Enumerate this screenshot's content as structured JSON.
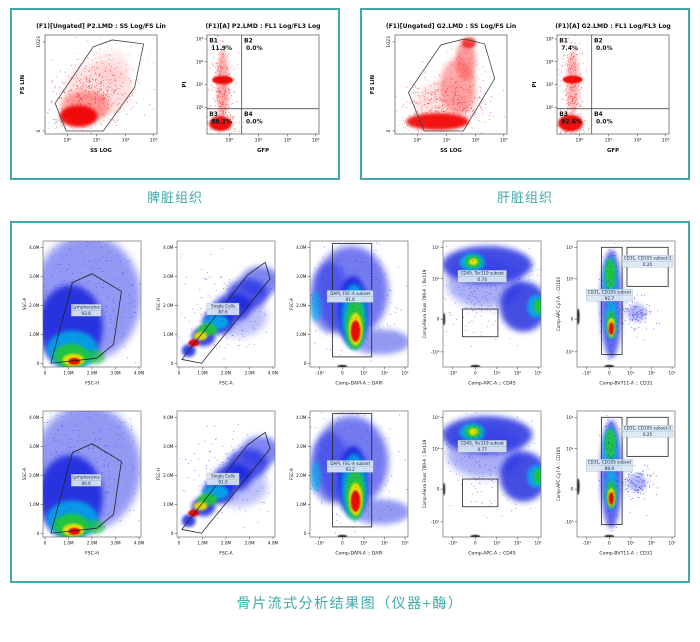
{
  "accent": "#3fa9ac",
  "top_panels": [
    {
      "tissue_label": "脾脏组织",
      "scatter": {
        "type": "fs",
        "kind": "fs_spleen",
        "title": "(F1)[Ungated] P2.LMD : SS Log/FS Lin",
        "xlabel": "SS LOG",
        "ylabel": "FS LIN",
        "xticks": [
          "10⁰",
          "10¹",
          "10²",
          "10³"
        ],
        "yticks": [
          "1023",
          "0"
        ]
      },
      "quadrant": {
        "type": "quad",
        "kind": "pi_gfp_spleen",
        "title": "(F1)[A] P2.LMD : FL1 Log/FL3 Log",
        "xlabel": "GFP",
        "ylabel": "PI",
        "xticks": [
          "10⁰",
          "10¹",
          "10²",
          "10³"
        ],
        "yticks": [
          "10³",
          "10²",
          "10¹",
          "10⁰"
        ],
        "quads": [
          {
            "name": "B1",
            "pct": "11.9%"
          },
          {
            "name": "B2",
            "pct": "0.0%"
          },
          {
            "name": "B3",
            "pct": "88.1%"
          },
          {
            "name": "B4",
            "pct": "0.0%"
          }
        ]
      }
    },
    {
      "tissue_label": "肝脏组织",
      "scatter": {
        "type": "fs",
        "kind": "fs_liver",
        "title": "(F1)[Ungated] G2.LMD : SS Log/FS Lin",
        "xlabel": "SS LOG",
        "ylabel": "FS LIN",
        "xticks": [
          "10⁰",
          "10¹",
          "10²",
          "10³"
        ],
        "yticks": [
          "1023",
          "0"
        ]
      },
      "quadrant": {
        "type": "quad",
        "kind": "pi_gfp_liver",
        "title": "(F1)[A] G2.LMD : FL1 Log/FL3 Log",
        "xlabel": "GFP",
        "ylabel": "PI",
        "xticks": [
          "10⁰",
          "10¹",
          "10²",
          "10³"
        ],
        "yticks": [
          "10³",
          "10²",
          "10¹",
          "10⁰"
        ],
        "quads": [
          {
            "name": "B1",
            "pct": "7.4%"
          },
          {
            "name": "B2",
            "pct": "0.0%"
          },
          {
            "name": "B3",
            "pct": "92.6%"
          },
          {
            "name": "B4",
            "pct": "0.0%"
          }
        ]
      }
    }
  ],
  "bottom_panel": {
    "caption": "骨片流式分析结果图（仪器+酶）",
    "rows": [
      {
        "plots": [
          {
            "kind": "lymph",
            "xlabel": "FSC-H",
            "ylabel": "SSC-A",
            "xticks": [
              "0",
              "1.0M",
              "2.0M",
              "3.0M",
              "4.0M"
            ],
            "yticks": [
              "4.0M",
              "3.0M",
              "2.0M",
              "1.0M",
              "0"
            ],
            "gates": [
              {
                "label": "Lymphocytes",
                "value": "93.8"
              }
            ]
          },
          {
            "kind": "singlets",
            "xlabel": "FSC-A",
            "ylabel": "FSC-H",
            "xticks": [
              "0",
              "1.0M",
              "2.0M",
              "3.0M",
              "4.0M"
            ],
            "yticks": [
              "4.0M",
              "3.0M",
              "2.0M",
              "1.0M",
              "0"
            ],
            "gates": [
              {
                "label": "Single Cells",
                "value": "87.6"
              }
            ]
          },
          {
            "kind": "dapi",
            "xlabel": "Comp-DAPI-A :: DAPI",
            "ylabel": "FSC-A",
            "xticks": [
              "-10³",
              "0",
              "10³",
              "10⁴",
              "10⁵"
            ],
            "yticks": [
              "4.0M",
              "3.0M",
              "2.0M",
              "1.0M",
              "0"
            ],
            "gates": [
              {
                "label": "DAPI, FSC-A subset",
                "value": "91.6"
              }
            ]
          },
          {
            "kind": "cd45",
            "xlabel": "Comp-APC-A :: CD45",
            "ylabel": "Comp-Alexa Fluor 700-A :: Ter119",
            "xticks": [
              "-10³",
              "0",
              "10³",
              "10⁴",
              "10⁵"
            ],
            "yticks": [
              "10⁵",
              "10⁴",
              "0",
              "-10³"
            ],
            "gates": [
              {
                "label": "CD45, Ter119 subset",
                "value": "0.74"
              }
            ]
          },
          {
            "kind": "cd31",
            "xlabel": "Comp-BV711-A :: CD31",
            "ylabel": "Comp-APC-Cy7-A :: CD105",
            "xticks": [
              "-10³",
              "0",
              "10³",
              "10⁴",
              "10⁵"
            ],
            "yticks": [
              "10⁵",
              "10⁴",
              "0",
              "-10³"
            ],
            "gates": [
              {
                "label": "CD31, CD105 subset",
                "value": "92.7"
              },
              {
                "label": "CD31, CD105 subset-1",
                "value": "0.20"
              }
            ]
          }
        ]
      },
      {
        "plots": [
          {
            "kind": "lymph",
            "xlabel": "FSC-H",
            "ylabel": "SSC-A",
            "xticks": [
              "0",
              "1.0M",
              "2.0M",
              "3.0M",
              "4.0M"
            ],
            "yticks": [
              "4.0M",
              "3.0M",
              "2.0M",
              "1.0M",
              "0"
            ],
            "gates": [
              {
                "label": "Lymphocytes",
                "value": "90.6"
              }
            ]
          },
          {
            "kind": "singlets",
            "xlabel": "FSC-A",
            "ylabel": "FSC-H",
            "xticks": [
              "0",
              "1.0M",
              "2.0M",
              "3.0M",
              "4.0M"
            ],
            "yticks": [
              "4.0M",
              "3.0M",
              "2.0M",
              "1.0M",
              "0"
            ],
            "gates": [
              {
                "label": "Single Cells",
                "value": "91.0"
              }
            ]
          },
          {
            "kind": "dapi",
            "xlabel": "Comp-DAPI-A :: DAPI",
            "ylabel": "FSC-A",
            "xticks": [
              "-10³",
              "0",
              "10³",
              "10⁴",
              "10⁵"
            ],
            "yticks": [
              "4.0M",
              "3.0M",
              "2.0M",
              "1.0M",
              "0"
            ],
            "gates": [
              {
                "label": "DAPI, FSC-A subset",
                "value": "93.2"
              }
            ]
          },
          {
            "kind": "cd45",
            "xlabel": "Comp-APC-A :: CD45",
            "ylabel": "Comp-Alexa Fluor 700-A :: Ter119",
            "xticks": [
              "-10³",
              "0",
              "10³",
              "10⁴",
              "10⁵"
            ],
            "yticks": [
              "10⁵",
              "10⁴",
              "0",
              "-10³"
            ],
            "gates": [
              {
                "label": "CD45, Ter119 subset",
                "value": "0.77"
              }
            ]
          },
          {
            "kind": "cd31",
            "xlabel": "Comp-BV711-A :: CD31",
            "ylabel": "Comp-APC-Cy7-A :: CD105",
            "xticks": [
              "-10³",
              "0",
              "10³",
              "10⁴",
              "10⁵"
            ],
            "yticks": [
              "10⁵",
              "10⁴",
              "0",
              "-10³"
            ],
            "gates": [
              {
                "label": "CD31, CD105 subset",
                "value": "88.9"
              },
              {
                "label": "CD31, CD105 subset-1",
                "value": "0.25"
              }
            ]
          }
        ]
      }
    ]
  },
  "chart_data": [
    {
      "type": "scatter",
      "panel": "脾脏组织",
      "title": "(F1)[Ungated] P2.LMD : SS Log/FS Lin",
      "xlabel": "SS LOG",
      "ylabel": "FS LIN",
      "x_scale": "log",
      "x_ticks": [
        "10⁰",
        "10¹",
        "10²",
        "10³"
      ],
      "y_range": [
        0,
        1023
      ],
      "note": "red event cloud, polygon gate on main population"
    },
    {
      "type": "scatter",
      "panel": "脾脏组织",
      "title": "(F1)[A] P2.LMD : FL1 Log/FL3 Log",
      "xlabel": "GFP",
      "ylabel": "PI",
      "x_scale": "log",
      "y_scale": "log",
      "quadrant_pcts": {
        "B1": 11.9,
        "B2": 0.0,
        "B3": 88.1,
        "B4": 0.0
      }
    },
    {
      "type": "scatter",
      "panel": "肝脏组织",
      "title": "(F1)[Ungated] G2.LMD : SS Log/FS Lin",
      "xlabel": "SS LOG",
      "ylabel": "FS LIN",
      "x_scale": "log",
      "y_range": [
        0,
        1023
      ],
      "note": "red event cloud, polygon gate on main population"
    },
    {
      "type": "scatter",
      "panel": "肝脏组织",
      "title": "(F1)[A] G2.LMD : FL1 Log/FL3 Log",
      "xlabel": "GFP",
      "ylabel": "PI",
      "x_scale": "log",
      "y_scale": "log",
      "quadrant_pcts": {
        "B1": 7.4,
        "B2": 0.0,
        "B3": 92.6,
        "B4": 0.0
      }
    },
    {
      "type": "scatter",
      "panel": "骨片流式分析结果图（仪器+酶）",
      "row": 1,
      "gate_pcts": {
        "Lymphocytes": 93.8,
        "Single Cells": 87.6,
        "DAPI, FSC-A subset": 91.6,
        "CD45, Ter119 subset": 0.74,
        "CD31, CD105 subset": 92.7,
        "CD31, CD105 subset-1": 0.2
      }
    },
    {
      "type": "scatter",
      "panel": "骨片流式分析结果图（仪器+酶）",
      "row": 2,
      "gate_pcts": {
        "Lymphocytes": 90.6,
        "Single Cells": 91.0,
        "DAPI, FSC-A subset": 93.2,
        "CD45, Ter119 subset": 0.77,
        "CD31, CD105 subset": 88.9,
        "CD31, CD105 subset-1": 0.25
      }
    }
  ]
}
